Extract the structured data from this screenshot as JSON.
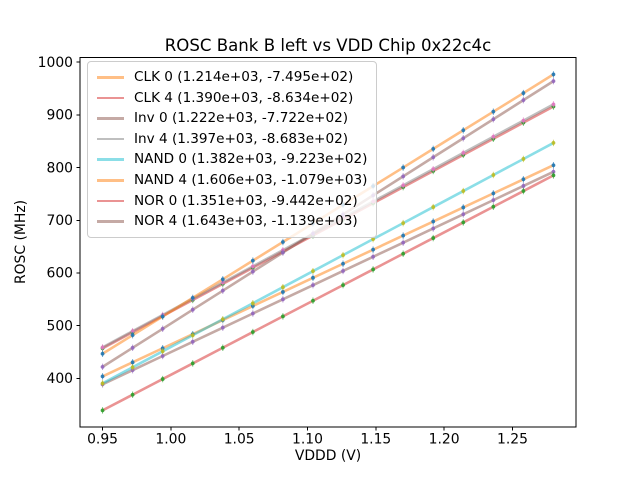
{
  "chart_data": {
    "type": "line",
    "title": "ROSC Bank B left vs VDD Chip 0x22c4c",
    "xlabel": "VDDD (V)",
    "ylabel": "ROSC (MHz)",
    "grid": false,
    "legend_position": "upper left",
    "xlim": [
      0.9335,
      1.2965
    ],
    "ylim": [
      307.4,
      1008.6
    ],
    "xticks": [
      {
        "label": "0.95",
        "value": 0.95
      },
      {
        "label": "1.00",
        "value": 1.0
      },
      {
        "label": "1.05",
        "value": 1.05
      },
      {
        "label": "1.10",
        "value": 1.1
      },
      {
        "label": "1.15",
        "value": 1.15
      },
      {
        "label": "1.20",
        "value": 1.2
      },
      {
        "label": "1.25",
        "value": 1.25
      }
    ],
    "yticks": [
      {
        "label": "400",
        "value": 400
      },
      {
        "label": "500",
        "value": 500
      },
      {
        "label": "600",
        "value": 600
      },
      {
        "label": "700",
        "value": 700
      },
      {
        "label": "800",
        "value": 800
      },
      {
        "label": "900",
        "value": 900
      },
      {
        "label": "1000",
        "value": 1000
      }
    ],
    "x": [
      0.95,
      0.972,
      0.994,
      1.016,
      1.038,
      1.06,
      1.082,
      1.104,
      1.126,
      1.148,
      1.17,
      1.192,
      1.214,
      1.236,
      1.258,
      1.28
    ],
    "series": [
      {
        "name": "CLK 0",
        "label": "CLK 0 (1.214e+03, -7.495e+02)",
        "fit_slope": 1214.0,
        "fit_intercept": -749.5,
        "line_color": "#ff7f0e",
        "line_alpha": 0.5,
        "marker_color": "#1f77b4",
        "values": [
          403.8,
          430.5,
          457.2,
          483.9,
          510.6,
          537.3,
          564.0,
          590.8,
          617.5,
          644.2,
          670.9,
          697.6,
          724.3,
          751.0,
          777.7,
          804.4
        ]
      },
      {
        "name": "CLK 4",
        "label": "CLK 4 (1.390e+03, -8.634e+02)",
        "fit_slope": 1390.0,
        "fit_intercept": -863.4,
        "line_color": "#d62728",
        "line_alpha": 0.5,
        "marker_color": "#2ca02c",
        "values": [
          457.1,
          487.7,
          518.3,
          548.8,
          579.4,
          610.0,
          640.6,
          671.2,
          701.7,
          732.3,
          762.9,
          793.5,
          824.1,
          854.6,
          885.2,
          915.8
        ]
      },
      {
        "name": "Inv 0",
        "label": "Inv 0 (1.222e+03, -7.722e+02)",
        "fit_slope": 1222.0,
        "fit_intercept": -772.2,
        "line_color": "#8c564b",
        "line_alpha": 0.5,
        "marker_color": "#9467bd",
        "values": [
          388.7,
          415.6,
          442.5,
          469.4,
          496.2,
          523.1,
          550.0,
          576.9,
          603.8,
          630.7,
          657.5,
          684.4,
          711.3,
          738.2,
          765.1,
          792.0
        ]
      },
      {
        "name": "Inv 4",
        "label": "Inv 4 (1.397e+03, -8.683e+02)",
        "fit_slope": 1397.0,
        "fit_intercept": -868.3,
        "line_color": "#7f7f7f",
        "line_alpha": 0.5,
        "marker_color": "#e377c2",
        "values": [
          458.9,
          489.6,
          520.3,
          551.1,
          581.8,
          612.5,
          643.3,
          674.0,
          704.7,
          735.5,
          766.2,
          796.9,
          827.7,
          858.4,
          889.1,
          919.9
        ]
      },
      {
        "name": "NAND 0",
        "label": "NAND 0 (1.382e+03, -9.223e+02)",
        "fit_slope": 1382.0,
        "fit_intercept": -922.3,
        "line_color": "#17becf",
        "line_alpha": 0.5,
        "marker_color": "#bcbd22",
        "values": [
          390.6,
          421.0,
          451.4,
          481.8,
          512.2,
          542.6,
          573.0,
          603.4,
          633.8,
          664.2,
          694.6,
          725.0,
          755.4,
          785.9,
          816.3,
          846.7
        ]
      },
      {
        "name": "NAND 4",
        "label": "NAND 4 (1.606e+03, -1.079e+03)",
        "fit_slope": 1606.0,
        "fit_intercept": -1079.0,
        "line_color": "#ff7f0e",
        "line_alpha": 0.5,
        "marker_color": "#1f77b4",
        "values": [
          446.7,
          482.0,
          517.4,
          552.7,
          588.0,
          623.4,
          658.7,
          694.0,
          729.4,
          764.7,
          800.0,
          835.4,
          870.7,
          906.0,
          941.3,
          976.7
        ]
      },
      {
        "name": "NOR 0",
        "label": "NOR 0 (1.351e+03, -9.442e+02)",
        "fit_slope": 1351.0,
        "fit_intercept": -944.2,
        "line_color": "#d62728",
        "line_alpha": 0.5,
        "marker_color": "#2ca02c",
        "values": [
          339.3,
          369.0,
          398.7,
          428.4,
          458.1,
          487.9,
          517.6,
          547.3,
          577.0,
          606.7,
          636.5,
          666.2,
          695.9,
          725.6,
          755.4,
          785.1
        ]
      },
      {
        "name": "NOR 4",
        "label": "NOR 4 (1.643e+03, -1.139e+03)",
        "fit_slope": 1643.0,
        "fit_intercept": -1139.0,
        "line_color": "#8c564b",
        "line_alpha": 0.5,
        "marker_color": "#9467bd",
        "values": [
          421.9,
          458.0,
          494.1,
          530.3,
          566.4,
          602.6,
          638.7,
          674.9,
          711.0,
          747.2,
          783.3,
          819.5,
          855.6,
          891.7,
          927.9,
          964.0
        ]
      }
    ]
  }
}
